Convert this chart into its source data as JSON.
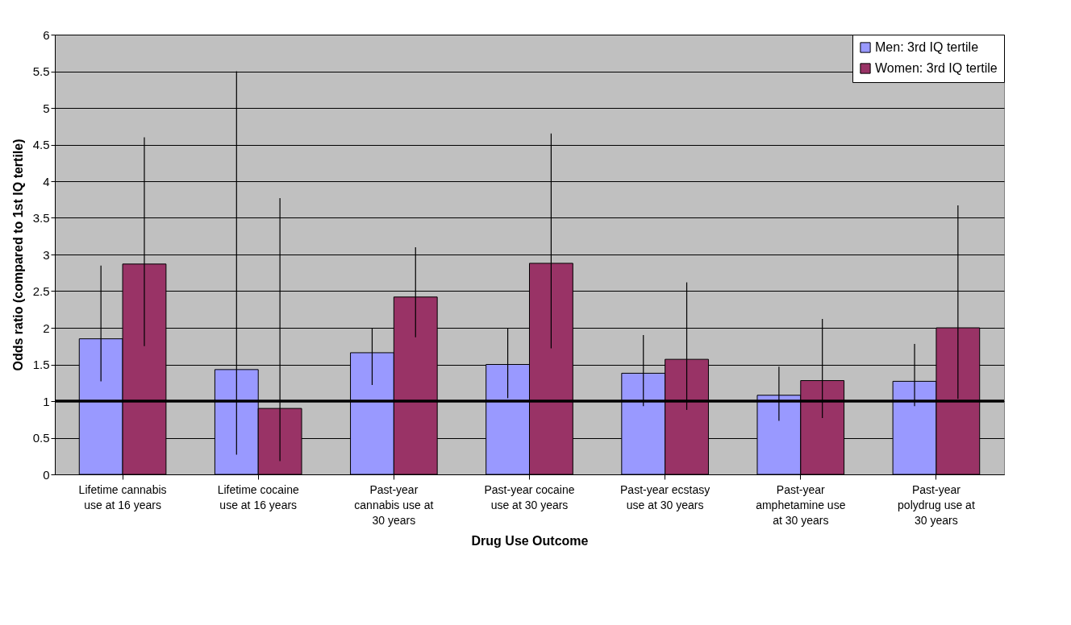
{
  "chart_data": {
    "type": "bar",
    "xlabel": "Drug Use Outcome",
    "ylabel": "Odds ratio (compared to 1st IQ tertile)",
    "categories": [
      "Lifetime cannabis use at 16 years",
      "Lifetime cocaine use at 16 years",
      "Past-year cannabis use at 30 years",
      "Past-year cocaine use at 30 years",
      "Past-year ecstasy use at 30 years",
      "Past-year amphetamine use at 30 years",
      "Past-year polydrug use at 30 years"
    ],
    "series": [
      {
        "name": "Men: 3rd IQ tertile",
        "color": "#9999ff",
        "values": [
          1.85,
          1.43,
          1.66,
          1.5,
          1.38,
          1.08,
          1.27
        ],
        "errors": [
          [
            1.27,
            2.85
          ],
          [
            0.27,
            5.5
          ],
          [
            1.22,
            2.0
          ],
          [
            1.04,
            2.0
          ],
          [
            0.93,
            1.9
          ],
          [
            0.73,
            1.47
          ],
          [
            0.93,
            1.78
          ]
        ]
      },
      {
        "name": "Women: 3rd IQ tertile",
        "color": "#993366",
        "values": [
          2.87,
          0.9,
          2.42,
          2.88,
          1.57,
          1.28,
          2.0
        ],
        "errors": [
          [
            1.75,
            4.6
          ],
          [
            0.18,
            3.77
          ],
          [
            1.87,
            3.1
          ],
          [
            1.72,
            4.65
          ],
          [
            0.88,
            2.62
          ],
          [
            0.77,
            2.12
          ],
          [
            1.03,
            3.67
          ]
        ]
      }
    ],
    "ylim": [
      0,
      6
    ],
    "yticks": [
      0,
      0.5,
      1,
      1.5,
      2,
      2.5,
      3,
      3.5,
      4,
      4.5,
      5,
      5.5,
      6
    ],
    "ref_lines": [
      {
        "axis": "y",
        "value": 1,
        "color": "#000000"
      }
    ],
    "grid": "y",
    "legend": "top right"
  }
}
